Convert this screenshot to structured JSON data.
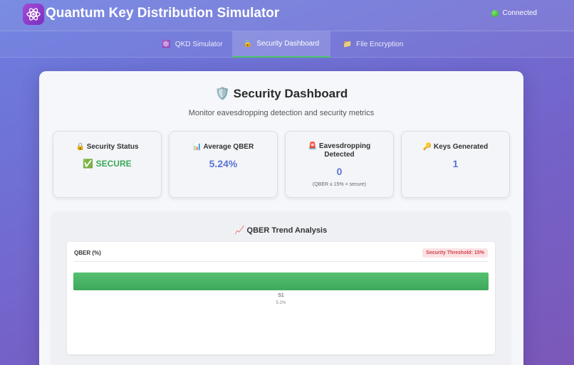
{
  "header": {
    "title": "Quantum Key Distribution Simulator",
    "logo_icon": "atom-icon",
    "status": "Connected",
    "status_color": "#2ba32a"
  },
  "tabs": [
    {
      "icon": "⚛️",
      "label": "QKD Simulator",
      "active": false
    },
    {
      "icon": "🔒",
      "label": "Security Dashboard",
      "active": true
    },
    {
      "icon": "📁",
      "label": "File Encryption",
      "active": false
    }
  ],
  "dashboard": {
    "title_icon": "🛡️",
    "title": "Security Dashboard",
    "subtitle": "Monitor eavesdropping detection and security metrics"
  },
  "cards": [
    {
      "icon": "🔒",
      "label": "Security Status",
      "value": "✅ SECURE",
      "note": ""
    },
    {
      "icon": "📊",
      "label": "Average QBER",
      "value": "5.24%",
      "note": ""
    },
    {
      "icon": "🚨",
      "label": "Eavesdropping Detected",
      "value": "0",
      "note": "(QBER ≤ 15% = secure)"
    },
    {
      "icon": "🔑",
      "label": "Keys Generated",
      "value": "1",
      "note": ""
    }
  ],
  "trend": {
    "title_icon": "📈",
    "title": "QBER Trend Analysis",
    "ylabel": "QBER (%)",
    "threshold_label": "Security Threshold: 15%"
  },
  "chart_data": {
    "type": "bar",
    "categories": [
      "S1"
    ],
    "values": [
      5.2
    ],
    "value_labels": [
      "5.2%"
    ],
    "ylabel": "QBER (%)",
    "threshold": 15,
    "bar_color": "#3ea95b",
    "orientation": "horizontal"
  }
}
